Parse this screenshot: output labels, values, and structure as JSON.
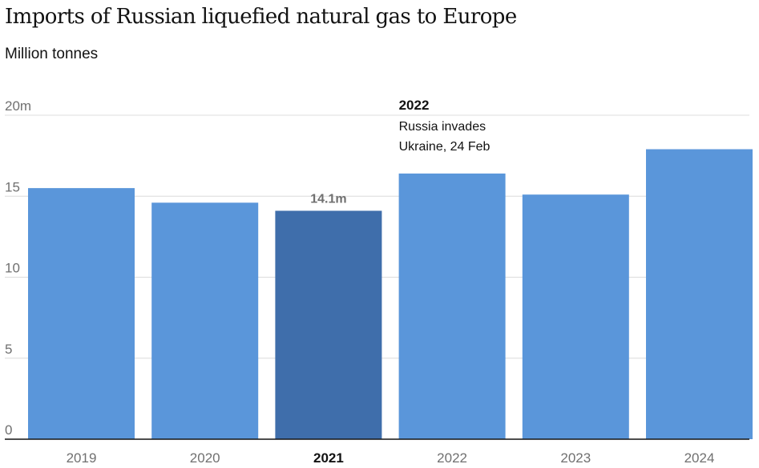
{
  "title": "Imports of Russian liquefied natural gas to Europe",
  "subtitle": "Million tonnes",
  "colors": {
    "bar": "#5a96da",
    "highlight": "#3f6eab",
    "grid": "#dcdcdc",
    "axis": "#121212"
  },
  "chart_data": {
    "type": "bar",
    "categories": [
      "2019",
      "2020",
      "2021",
      "2022",
      "2023",
      "2024"
    ],
    "values": [
      15.5,
      14.6,
      14.1,
      16.4,
      15.1,
      17.9
    ],
    "ylim": [
      0,
      20
    ],
    "yticks": [
      0,
      5,
      10,
      15,
      20
    ],
    "ytick_labels": [
      "0",
      "5",
      "10",
      "15",
      "20m"
    ],
    "highlight_index": 2,
    "data_label": "14.1m",
    "annotation": {
      "category": "2022",
      "title": "2022",
      "lines": [
        "Russia invades",
        "Ukraine, 24 Feb"
      ]
    },
    "grid": true
  }
}
